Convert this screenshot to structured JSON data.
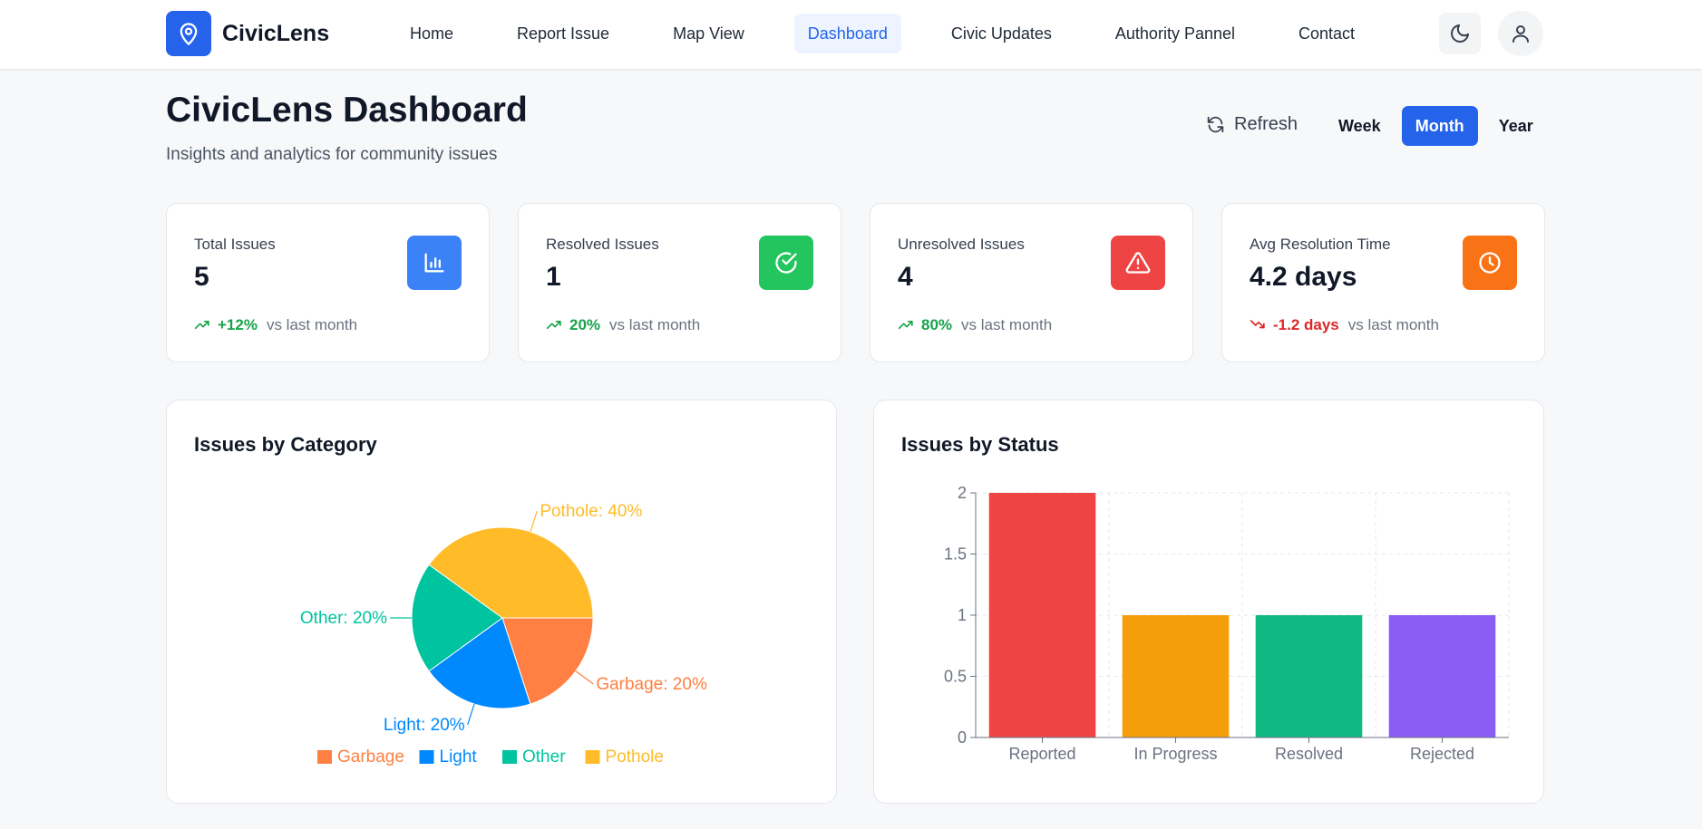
{
  "navbar": {
    "brand": "CivicLens",
    "links": [
      {
        "label": "Home",
        "active": false
      },
      {
        "label": "Report Issue",
        "active": false
      },
      {
        "label": "Map View",
        "active": false
      },
      {
        "label": "Dashboard",
        "active": true
      },
      {
        "label": "Civic Updates",
        "active": false
      },
      {
        "label": "Authority Pannel",
        "active": false
      },
      {
        "label": "Contact",
        "active": false
      }
    ]
  },
  "header": {
    "title": "CivicLens Dashboard",
    "subtitle": "Insights and analytics for community issues",
    "refresh_label": "Refresh",
    "periods": [
      "Week",
      "Month",
      "Year"
    ],
    "selected_period": "Month"
  },
  "stats": [
    {
      "label": "Total Issues",
      "value": "5",
      "trend": "+12%",
      "trend_suffix": "vs last month",
      "trend_dir": "up",
      "icon": "bar-chart-icon",
      "icon_color": "#3b82f6"
    },
    {
      "label": "Resolved Issues",
      "value": "1",
      "trend": "20%",
      "trend_suffix": "vs last month",
      "trend_dir": "up",
      "icon": "check-circle-icon",
      "icon_color": "#22c55e"
    },
    {
      "label": "Unresolved Issues",
      "value": "4",
      "trend": "80%",
      "trend_suffix": "vs last month",
      "trend_dir": "up",
      "icon": "alert-triangle-icon",
      "icon_color": "#ef4444"
    },
    {
      "label": "Avg Resolution Time",
      "value": "4.2 days",
      "trend": "-1.2 days",
      "trend_suffix": "vs last month",
      "trend_dir": "down",
      "icon": "clock-icon",
      "icon_color": "#f97316"
    }
  ],
  "colors": {
    "accent": "#2563eb",
    "trend_up": "#16a34a",
    "trend_down": "#dc2626"
  },
  "charts": {
    "category_title": "Issues by Category",
    "status_title": "Issues by Status"
  },
  "chart_data": [
    {
      "type": "pie",
      "title": "Issues by Category",
      "slices": [
        {
          "name": "Garbage",
          "value": 20,
          "label": "Garbage: 20%",
          "color": "#ff8042"
        },
        {
          "name": "Light",
          "value": 20,
          "label": "Light: 20%",
          "color": "#0088fe"
        },
        {
          "name": "Other",
          "value": 20,
          "label": "Other: 20%",
          "color": "#00c49f"
        },
        {
          "name": "Pothole",
          "value": 40,
          "label": "Pothole: 40%",
          "color": "#ffbb28"
        }
      ],
      "legend": [
        "Garbage",
        "Light",
        "Other",
        "Pothole"
      ],
      "legend_position": "bottom"
    },
    {
      "type": "bar",
      "title": "Issues by Status",
      "categories": [
        "Reported",
        "In Progress",
        "Resolved",
        "Rejected"
      ],
      "values": [
        2,
        1,
        1,
        1
      ],
      "colors": [
        "#ef4444",
        "#f59e0b",
        "#10b981",
        "#8b5cf6"
      ],
      "yticks": [
        "0",
        "0.5",
        "1",
        "1.5",
        "2"
      ],
      "ylim": [
        0,
        2
      ],
      "grid": true
    }
  ]
}
